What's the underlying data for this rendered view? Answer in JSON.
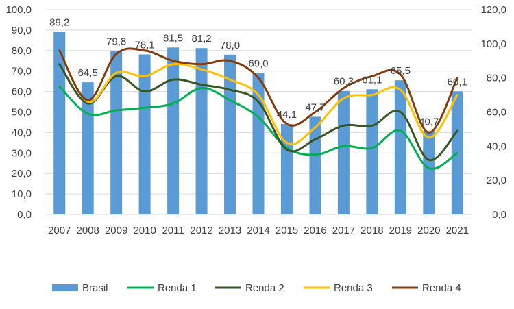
{
  "chart_data": {
    "type": "bar",
    "categories": [
      "2007",
      "2008",
      "2009",
      "2010",
      "2011",
      "2012",
      "2013",
      "2014",
      "2015",
      "2016",
      "2017",
      "2018",
      "2019",
      "2020",
      "2021"
    ],
    "bar_series": {
      "name": "Brasil",
      "axis": "left",
      "color": "#5b9bd5",
      "values": [
        89.2,
        64.5,
        79.8,
        78.1,
        81.5,
        81.2,
        78.0,
        69.0,
        44.1,
        47.7,
        60.3,
        61.1,
        65.5,
        40.7,
        60.1
      ],
      "labels": [
        "89,2",
        "64,5",
        "79,8",
        "78,1",
        "81,5",
        "81,2",
        "78,0",
        "69,0",
        "44,1",
        "47,7",
        "60,3",
        "61,1",
        "65,5",
        "40,7",
        "60,1"
      ]
    },
    "line_series": [
      {
        "name": "Renda 1",
        "axis": "right",
        "color": "#00b050",
        "values": [
          75,
          59,
          61,
          62.5,
          65,
          74,
          67,
          57,
          39,
          35,
          40,
          39,
          49,
          27,
          36
        ]
      },
      {
        "name": "Renda 2",
        "axis": "right",
        "color": "#375623",
        "values": [
          88,
          65,
          81,
          72,
          79,
          76,
          73,
          66,
          38,
          44,
          52,
          52,
          60,
          32,
          49
        ]
      },
      {
        "name": "Renda 3",
        "axis": "right",
        "color": "#ffc000",
        "values": [
          96,
          66,
          83,
          81,
          88,
          85,
          79,
          70,
          42,
          51,
          68,
          70,
          73,
          45,
          70
        ]
      },
      {
        "name": "Renda 4",
        "axis": "right",
        "color": "#843c0c",
        "values": [
          96,
          67,
          94,
          96,
          90,
          88,
          90,
          80,
          53,
          60,
          74,
          81,
          82,
          48,
          80
        ]
      }
    ],
    "left_axis": {
      "ylim": [
        0,
        100
      ],
      "step": 10,
      "ticks": [
        "0,0",
        "10,0",
        "20,0",
        "30,0",
        "40,0",
        "50,0",
        "60,0",
        "70,0",
        "80,0",
        "90,0",
        "100,0"
      ]
    },
    "right_axis": {
      "ylim": [
        0,
        120
      ],
      "step": 20,
      "ticks": [
        "0,0",
        "20,0",
        "40,0",
        "60,0",
        "80,0",
        "100,0",
        "120,0"
      ]
    },
    "grid": true,
    "legend": {
      "position": "bottom",
      "entries": [
        "Brasil",
        "Renda 1",
        "Renda 2",
        "Renda 3",
        "Renda 4"
      ]
    }
  }
}
